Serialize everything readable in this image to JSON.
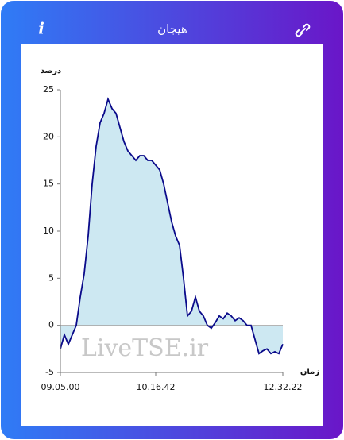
{
  "header": {
    "title": "هیجان",
    "info": "i"
  },
  "chart_data": {
    "type": "area",
    "y_label": "درصد",
    "x_label": "زمان",
    "watermark": "LiveTSE.ir",
    "categories": [
      "09.05.00",
      null,
      null,
      null,
      null,
      null,
      null,
      null,
      null,
      null,
      null,
      null,
      null,
      null,
      null,
      null,
      null,
      null,
      null,
      null,
      null,
      null,
      null,
      null,
      "10.16.42",
      null,
      null,
      null,
      null,
      null,
      null,
      null,
      null,
      null,
      null,
      null,
      null,
      null,
      null,
      null,
      null,
      null,
      null,
      null,
      null,
      null,
      null,
      null,
      null,
      null,
      null,
      null,
      null,
      null,
      null,
      null,
      "12.32.22"
    ],
    "values": [
      -2.5,
      -1,
      -2,
      -1,
      0,
      3,
      5.5,
      9.5,
      15,
      19,
      21.5,
      22.5,
      24,
      23,
      22.5,
      21,
      19.5,
      18.5,
      18,
      17.5,
      18,
      18,
      17.5,
      17.5,
      17,
      16.5,
      15,
      13,
      11,
      9.5,
      8.5,
      5,
      1,
      1.5,
      3,
      1.5,
      1,
      0,
      -0.3,
      0.3,
      1,
      0.7,
      1.3,
      1,
      0.5,
      0.8,
      0.5,
      0,
      0,
      -1.5,
      -3,
      -2.7,
      -2.5,
      -3,
      -2.8,
      -3,
      -2
    ],
    "color": "#0a0a8a",
    "fill": "#cde8f2",
    "ylim": [
      -5,
      25
    ],
    "yticks": [
      -5,
      0,
      5,
      10,
      15,
      20,
      25
    ],
    "grid": false
  }
}
